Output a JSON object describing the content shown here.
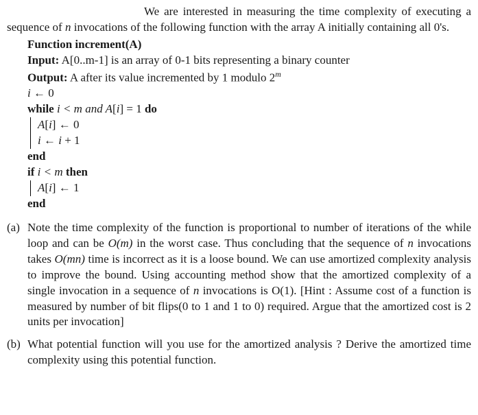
{
  "intro": {
    "line1_prefix": "We are interested in measuring the time complexity of",
    "line2": "executing a sequence of ",
    "line2_n": "n",
    "line2_rest": " invocations of the following function with the array A initially containing all 0's."
  },
  "fn": {
    "header": "Function increment(A)",
    "input_label": "Input:",
    "input_text": " A[0..m-1] is an array of 0-1 bits representing a binary counter",
    "output_label": "Output:",
    "output_text_a": " A after its value incremented by 1 modulo 2",
    "output_exp": "m",
    "l1_a": "i",
    "l1_b": " ← 0",
    "l2_while": "while ",
    "l2_cond_a": "i < m  and  A",
    "l2_cond_b": "[",
    "l2_cond_c": "i",
    "l2_cond_d": "] = 1 ",
    "l2_do": "do",
    "l3_a": "A",
    "l3_b": "[",
    "l3_c": "i",
    "l3_d": "] ← 0",
    "l4_a": "i",
    "l4_b": " ← ",
    "l4_c": "i",
    "l4_d": " + 1",
    "end1": "end",
    "l5_if": "if ",
    "l5_cond_a": "i < m ",
    "l5_then": "then",
    "l6_a": "A",
    "l6_b": "[",
    "l6_c": "i",
    "l6_d": "] ← 1",
    "end2": "end"
  },
  "parts": {
    "a_label": "(a)",
    "a_t1": "Note the time complexity of the function is proportional to number of iterations of the while loop and can be ",
    "a_Om": "O(m)",
    "a_t2": " in the worst case. Thus concluding that the sequence of ",
    "a_n1": "n",
    "a_t3": " invocations takes ",
    "a_Omn": "O(mn)",
    "a_t4": " time is incorrect as it is a loose bound. We can use amortized complexity analysis to improve the bound. Using accounting method show that the amortized complexity of a single invocation in a sequence of ",
    "a_n2": "n",
    "a_t5": " invocations is O(1). [Hint : Assume cost of a function is measured by number of bit flips(0 to 1 and 1 to 0) required. Argue that the amortized cost is 2 units per invocation]",
    "b_label": "(b)",
    "b_text": "What potential function will you use for the amortized analysis ? Derive the amortized time complexity using this potential function."
  }
}
